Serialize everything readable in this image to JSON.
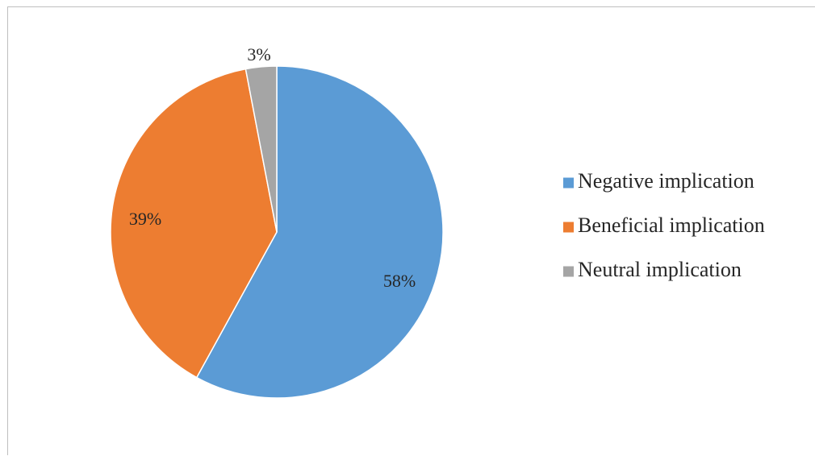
{
  "chart_data": {
    "type": "pie",
    "title": "",
    "slices": [
      {
        "name": "Negative implication",
        "value": 58,
        "label": "58%",
        "color": "#5b9bd5"
      },
      {
        "name": "Beneficial implication",
        "value": 39,
        "label": "39%",
        "color": "#ed7d31"
      },
      {
        "name": "Neutral implication",
        "value": 3,
        "label": "3%",
        "color": "#a5a5a5"
      }
    ],
    "start": "12 o'clock",
    "direction": "clockwise",
    "legend": {
      "position": "right",
      "entries": [
        "Negative implication",
        "Beneficial implication",
        "Neutral implication"
      ]
    }
  }
}
